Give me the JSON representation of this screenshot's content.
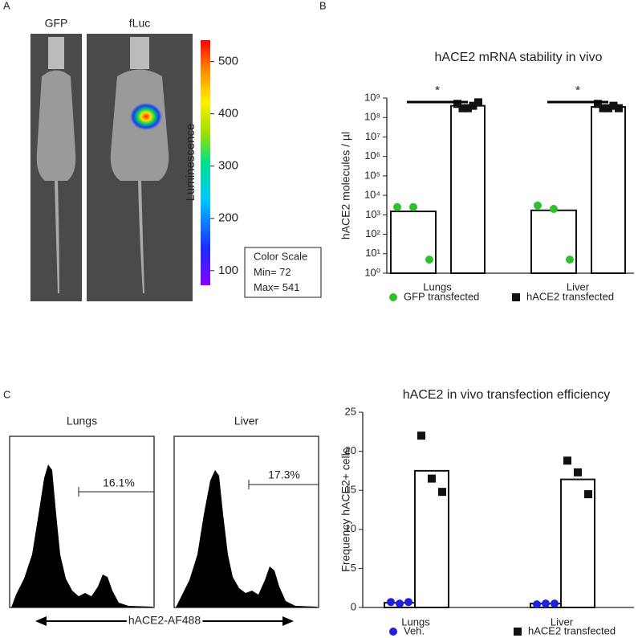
{
  "panels": [
    "A",
    "B",
    "C"
  ],
  "imaging": {
    "labels": [
      "GFP",
      "fLuc"
    ],
    "colorbar_label": "Luminescence",
    "colorbar_ticks": [
      100,
      200,
      300,
      400,
      500
    ],
    "color_scale": {
      "title": "Color Scale",
      "min_label": "Min=",
      "min": 72,
      "max_label": "Max=",
      "max": 541
    }
  },
  "flow": {
    "plots": [
      {
        "title": "Lungs",
        "gate_label": "16.1%"
      },
      {
        "title": "Liver",
        "gate_label": "17.3%"
      }
    ],
    "x_label": "hACE2-AF488"
  },
  "chart_data": [
    {
      "type": "bar",
      "title": "hACE2 mRNA stability in vivo",
      "y_label": "hACE2 molecules / µl",
      "yscale": "log",
      "categories": [
        "Lungs",
        "Liver"
      ],
      "series": [
        {
          "name": "GFP transfected",
          "color": "#2dc22d",
          "marker": "circle",
          "values": [
            1500,
            1700
          ],
          "points": [
            [
              2500,
              2500,
              5
            ],
            [
              3000,
              2000,
              5
            ]
          ]
        },
        {
          "name": "hACE2 transfected",
          "color": "#111111",
          "marker": "square",
          "values": [
            400000000,
            350000000
          ],
          "points": [
            [
              500000000,
              300000000,
              300000000,
              400000000,
              600000000
            ],
            [
              500000000,
              300000000,
              300000000,
              400000000,
              300000000
            ]
          ]
        }
      ],
      "annotations": [
        "*",
        "*"
      ],
      "ylim": [
        1,
        1000000000
      ],
      "yticks": [
        {
          "value": 1,
          "label": "10⁰"
        },
        {
          "value": 10,
          "label": "10¹"
        },
        {
          "value": 100,
          "label": "10²"
        },
        {
          "value": 1000,
          "label": "10³"
        },
        {
          "value": 10000,
          "label": "10⁴"
        },
        {
          "value": 100000,
          "label": "10⁵"
        },
        {
          "value": 1000000,
          "label": "10⁶"
        },
        {
          "value": 10000000,
          "label": "10⁷"
        },
        {
          "value": 100000000,
          "label": "10⁸"
        },
        {
          "value": 1000000000,
          "label": "10⁹"
        }
      ]
    },
    {
      "type": "bar",
      "title": "hACE2 in vivo transfection efficiency",
      "y_label": "Frequency hACE2+ cells",
      "yscale": "linear",
      "categories": [
        "Lungs",
        "Liver"
      ],
      "series": [
        {
          "name": "Veh.",
          "color": "#1f1fe0",
          "marker": "circle",
          "values": [
            0.6,
            0.5
          ],
          "points": [
            [
              0.7,
              0.5,
              0.7
            ],
            [
              0.4,
              0.5,
              0.5
            ]
          ]
        },
        {
          "name": "hACE2 transfected",
          "color": "#111111",
          "marker": "square",
          "values": [
            17.5,
            16.4
          ],
          "points": [
            [
              22,
              16.5,
              14.8
            ],
            [
              18.8,
              17.3,
              14.5
            ]
          ]
        }
      ],
      "ylim": [
        0,
        25
      ],
      "yticks": [
        0,
        5,
        10,
        15,
        20,
        25
      ]
    }
  ]
}
